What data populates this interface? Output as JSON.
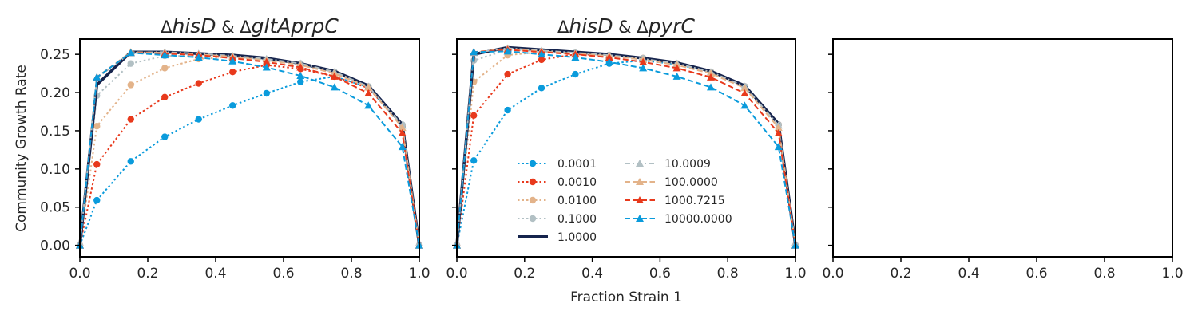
{
  "figure": {
    "ylabel": "Community Growth Rate",
    "xlabel": "Fraction Strain 1"
  },
  "chart_data": [
    {
      "type": "line",
      "panel": "left",
      "title_prefix": "Δ",
      "title_gene1": "hisD",
      "title_amp": " & ",
      "title_gene2": "gltAprpC",
      "xlim": [
        0,
        1
      ],
      "ylim": [
        -0.015,
        0.27
      ],
      "xticks": [
        "0.0",
        "0.2",
        "0.4",
        "0.6",
        "0.8",
        "1.0"
      ],
      "yticks": [
        "0.00",
        "0.05",
        "0.10",
        "0.15",
        "0.20",
        "0.25"
      ],
      "series": [
        {
          "name": "0.0001",
          "color": "#0a9bdc",
          "marker": "circle",
          "dash": "dotted",
          "x": [
            0,
            0.05,
            0.15,
            0.25,
            0.35,
            0.45,
            0.55,
            0.65,
            0.75,
            0.85,
            0.95,
            1.0
          ],
          "y": [
            0,
            0.059,
            0.11,
            0.142,
            0.165,
            0.183,
            0.199,
            0.214,
            0.221,
            0.207,
            0.155,
            0
          ]
        },
        {
          "name": "0.0010",
          "color": "#e8391c",
          "marker": "circle",
          "dash": "dotted",
          "x": [
            0,
            0.05,
            0.15,
            0.25,
            0.35,
            0.45,
            0.55,
            0.65,
            0.75,
            0.85,
            0.95,
            1.0
          ],
          "y": [
            0,
            0.106,
            0.165,
            0.194,
            0.212,
            0.227,
            0.236,
            0.231,
            0.221,
            0.206,
            0.157,
            0
          ]
        },
        {
          "name": "0.0100",
          "color": "#e3b38a",
          "marker": "circle",
          "dash": "dotted",
          "x": [
            0,
            0.05,
            0.15,
            0.25,
            0.35,
            0.45,
            0.55,
            0.65,
            0.75,
            0.85,
            0.95,
            1.0
          ],
          "y": [
            0,
            0.156,
            0.21,
            0.232,
            0.244,
            0.247,
            0.243,
            0.238,
            0.227,
            0.208,
            0.157,
            0
          ]
        },
        {
          "name": "0.1000",
          "color": "#b2c0c4",
          "marker": "circle",
          "dash": "dotted",
          "x": [
            0,
            0.05,
            0.15,
            0.25,
            0.35,
            0.45,
            0.55,
            0.65,
            0.75,
            0.85,
            0.95,
            1.0
          ],
          "y": [
            0,
            0.196,
            0.238,
            0.248,
            0.248,
            0.247,
            0.243,
            0.238,
            0.227,
            0.208,
            0.158,
            0
          ]
        },
        {
          "name": "1.0000",
          "color": "#16244d",
          "marker": "none",
          "dash": "solid",
          "x": [
            0,
            0.05,
            0.15,
            0.25,
            0.35,
            0.45,
            0.55,
            0.65,
            0.75,
            0.85,
            0.95,
            1.0
          ],
          "y": [
            0,
            0.21,
            0.253,
            0.253,
            0.251,
            0.249,
            0.245,
            0.238,
            0.228,
            0.209,
            0.158,
            0
          ]
        },
        {
          "name": "10.0009",
          "color": "#b2c0c4",
          "marker": "triangle",
          "dash": "dashdot",
          "x": [
            0,
            0.05,
            0.15,
            0.25,
            0.35,
            0.45,
            0.55,
            0.65,
            0.75,
            0.85,
            0.95,
            1.0
          ],
          "y": [
            0,
            0.219,
            0.252,
            0.253,
            0.251,
            0.248,
            0.244,
            0.238,
            0.227,
            0.208,
            0.157,
            0
          ]
        },
        {
          "name": "100.0000",
          "color": "#e3b38a",
          "marker": "triangle",
          "dash": "dashed",
          "x": [
            0,
            0.05,
            0.15,
            0.25,
            0.35,
            0.45,
            0.55,
            0.65,
            0.75,
            0.85,
            0.95,
            1.0
          ],
          "y": [
            0,
            0.22,
            0.253,
            0.252,
            0.25,
            0.247,
            0.242,
            0.236,
            0.225,
            0.207,
            0.154,
            0
          ]
        },
        {
          "name": "1000.7215",
          "color": "#e8391c",
          "marker": "triangle",
          "dash": "dashed",
          "x": [
            0,
            0.05,
            0.15,
            0.25,
            0.35,
            0.45,
            0.55,
            0.65,
            0.75,
            0.85,
            0.95,
            1.0
          ],
          "y": [
            0,
            0.22,
            0.252,
            0.251,
            0.249,
            0.245,
            0.24,
            0.233,
            0.221,
            0.199,
            0.147,
            0
          ]
        },
        {
          "name": "10000.0000",
          "color": "#0a9bdc",
          "marker": "triangle",
          "dash": "dashed",
          "x": [
            0,
            0.05,
            0.15,
            0.25,
            0.35,
            0.45,
            0.55,
            0.65,
            0.75,
            0.85,
            0.95,
            1.0
          ],
          "y": [
            0,
            0.22,
            0.252,
            0.249,
            0.246,
            0.241,
            0.233,
            0.222,
            0.207,
            0.183,
            0.129,
            0
          ]
        }
      ]
    },
    {
      "type": "line",
      "panel": "middle",
      "title_prefix": "Δ",
      "title_gene1": "hisD",
      "title_amp": " & ",
      "title_gene2": "pyrC",
      "xlim": [
        0,
        1
      ],
      "ylim": [
        -0.015,
        0.27
      ],
      "xticks": [
        "0.0",
        "0.2",
        "0.4",
        "0.6",
        "0.8",
        "1.0"
      ],
      "legend": "lower-center",
      "series": [
        {
          "name": "0.0001",
          "color": "#0a9bdc",
          "marker": "circle",
          "dash": "dotted",
          "x": [
            0,
            0.05,
            0.15,
            0.25,
            0.35,
            0.45,
            0.55,
            0.65,
            0.75,
            0.85,
            0.95,
            1.0
          ],
          "y": [
            0,
            0.111,
            0.177,
            0.206,
            0.224,
            0.238,
            0.242,
            0.237,
            0.227,
            0.208,
            0.158,
            0
          ]
        },
        {
          "name": "0.0010",
          "color": "#e8391c",
          "marker": "circle",
          "dash": "dotted",
          "x": [
            0,
            0.05,
            0.15,
            0.25,
            0.35,
            0.45,
            0.55,
            0.65,
            0.75,
            0.85,
            0.95,
            1.0
          ],
          "y": [
            0,
            0.17,
            0.224,
            0.243,
            0.25,
            0.249,
            0.245,
            0.238,
            0.227,
            0.208,
            0.158,
            0
          ]
        },
        {
          "name": "0.0100",
          "color": "#e3b38a",
          "marker": "circle",
          "dash": "dotted",
          "x": [
            0,
            0.05,
            0.15,
            0.25,
            0.35,
            0.45,
            0.55,
            0.65,
            0.75,
            0.85,
            0.95,
            1.0
          ],
          "y": [
            0,
            0.214,
            0.249,
            0.253,
            0.251,
            0.249,
            0.245,
            0.238,
            0.227,
            0.208,
            0.158,
            0
          ]
        },
        {
          "name": "0.1000",
          "color": "#b2c0c4",
          "marker": "circle",
          "dash": "dotted",
          "x": [
            0,
            0.05,
            0.15,
            0.25,
            0.35,
            0.45,
            0.55,
            0.65,
            0.75,
            0.85,
            0.95,
            1.0
          ],
          "y": [
            0,
            0.242,
            0.256,
            0.254,
            0.252,
            0.249,
            0.245,
            0.238,
            0.227,
            0.208,
            0.158,
            0
          ]
        },
        {
          "name": "1.0000",
          "color": "#16244d",
          "marker": "none",
          "dash": "solid",
          "x": [
            0,
            0.05,
            0.15,
            0.25,
            0.35,
            0.45,
            0.55,
            0.65,
            0.75,
            0.85,
            0.95,
            1.0
          ],
          "y": [
            0,
            0.25,
            0.259,
            0.256,
            0.253,
            0.25,
            0.245,
            0.239,
            0.228,
            0.209,
            0.159,
            0
          ]
        },
        {
          "name": "10.0009",
          "color": "#b2c0c4",
          "marker": "triangle",
          "dash": "dashdot",
          "x": [
            0,
            0.05,
            0.15,
            0.25,
            0.35,
            0.45,
            0.55,
            0.65,
            0.75,
            0.85,
            0.95,
            1.0
          ],
          "y": [
            0,
            0.252,
            0.258,
            0.255,
            0.252,
            0.249,
            0.244,
            0.238,
            0.227,
            0.208,
            0.157,
            0
          ]
        },
        {
          "name": "100.0000",
          "color": "#e3b38a",
          "marker": "triangle",
          "dash": "dashed",
          "x": [
            0,
            0.05,
            0.15,
            0.25,
            0.35,
            0.45,
            0.55,
            0.65,
            0.75,
            0.85,
            0.95,
            1.0
          ],
          "y": [
            0,
            0.253,
            0.257,
            0.254,
            0.251,
            0.248,
            0.243,
            0.236,
            0.225,
            0.206,
            0.154,
            0
          ]
        },
        {
          "name": "1000.7215",
          "color": "#e8391c",
          "marker": "triangle",
          "dash": "dashed",
          "x": [
            0,
            0.05,
            0.15,
            0.25,
            0.35,
            0.45,
            0.55,
            0.65,
            0.75,
            0.85,
            0.95,
            1.0
          ],
          "y": [
            0,
            0.253,
            0.256,
            0.253,
            0.25,
            0.246,
            0.24,
            0.232,
            0.22,
            0.199,
            0.147,
            0
          ]
        },
        {
          "name": "10000.0000",
          "color": "#0a9bdc",
          "marker": "triangle",
          "dash": "dashed",
          "x": [
            0,
            0.05,
            0.15,
            0.25,
            0.35,
            0.45,
            0.55,
            0.65,
            0.75,
            0.85,
            0.95,
            1.0
          ],
          "y": [
            0,
            0.253,
            0.254,
            0.25,
            0.246,
            0.24,
            0.232,
            0.221,
            0.207,
            0.183,
            0.129,
            0
          ]
        }
      ]
    },
    {
      "type": "line",
      "panel": "right",
      "title": "",
      "xlim": [
        0,
        1
      ],
      "ylim": [
        -0.015,
        0.27
      ],
      "xticks": [
        "0.0",
        "0.2",
        "0.4",
        "0.6",
        "0.8",
        "1.0"
      ],
      "series": []
    }
  ]
}
